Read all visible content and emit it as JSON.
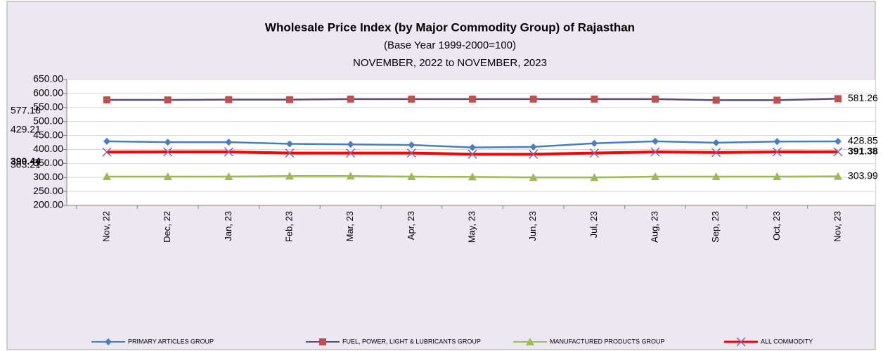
{
  "chart_data": {
    "type": "line",
    "title": "Wholesale Price Index (by Major Commodity Group) of Rajasthan",
    "subtitle": "(Base Year 1999-2000=100)",
    "period": "NOVEMBER,  2022 to NOVEMBER,  2023",
    "categories": [
      "Nov, 22",
      "Dec, 22",
      "Jan, 23",
      "Feb, 23",
      "Mar, 23",
      "Apr, 23",
      "May, 23",
      "Jun, 23",
      "Jul, 23",
      "Aug, 23",
      "Sep, 23",
      "Oct, 23",
      "Nov, 23"
    ],
    "series": [
      {
        "name": "PRIMARY ARTICLES GROUP",
        "color": "#4a7ebb",
        "marker": "diamond",
        "marker_color": "#4a7ebb",
        "values": [
          429.21,
          426,
          426,
          420,
          418,
          416,
          407,
          409,
          422,
          429,
          424,
          428,
          428.85
        ]
      },
      {
        "name": "FUEL, POWER, LIGHT & LUBRICANTS GROUP",
        "color": "#5b4a7a",
        "marker": "square",
        "marker_color": "#c0504d",
        "values": [
          577.18,
          577,
          578,
          578,
          580,
          580,
          580,
          580,
          580,
          580,
          576,
          576,
          581.26
        ]
      },
      {
        "name": "MANUFACTURED PRODUCTS GROUP",
        "color": "#9bbb59",
        "marker": "triangle",
        "marker_color": "#9bbb59",
        "values": [
          303.21,
          303,
          303,
          305,
          305,
          303,
          302,
          300,
          300,
          303,
          303,
          303,
          303.99
        ]
      },
      {
        "name": "ALL COMMODITY",
        "color": "#ff0000",
        "marker": "x",
        "marker_color": "#7f62a8",
        "values": [
          390.44,
          391,
          391,
          387,
          387,
          387,
          383,
          383,
          387,
          391,
          389,
          391,
          391.38
        ]
      }
    ],
    "ylim": [
      200,
      650
    ],
    "yticks": [
      {
        "value": 200,
        "label": "200.00"
      },
      {
        "value": 250,
        "label": "250.00"
      },
      {
        "value": 300,
        "label": "300.00"
      },
      {
        "value": 350,
        "label": "350.00"
      },
      {
        "value": 400,
        "label": "400.00"
      },
      {
        "value": 450,
        "label": "450.00"
      },
      {
        "value": 500,
        "label": "500.00"
      },
      {
        "value": 550,
        "label": "550.00"
      },
      {
        "value": 600,
        "label": "600.00"
      },
      {
        "value": 650,
        "label": "650.00"
      }
    ],
    "grid": true
  }
}
